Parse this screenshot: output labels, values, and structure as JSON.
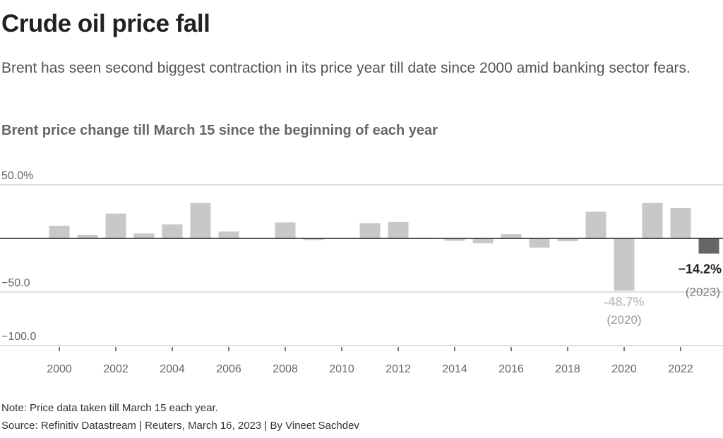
{
  "header": {
    "title": "Crude oil price fall",
    "subtitle": "Brent has seen second biggest contraction in its price year till date since 2000 amid banking sector fears."
  },
  "footer": {
    "note": "Note: Price data taken till March 15 each year.",
    "source": "Source: Refinitiv Datastream | Reuters, March 16, 2023 | By Vineet Sachdev"
  },
  "colors": {
    "bar": "#c8c8c8",
    "highlight_bar": "#666666",
    "zero_line": "#222222",
    "grid": "#cccccc",
    "annotation_2023": "#222222",
    "annotation_2020": "#c8c8c8",
    "annotation_year": "#777777"
  },
  "chart_data": {
    "type": "bar",
    "title": "Brent price change till March 15 since the beginning of each year",
    "xlabel": "",
    "ylabel": "",
    "ylim": [
      -100,
      50
    ],
    "grid": true,
    "y_ticks": [
      {
        "value": 50,
        "label": "50.0%"
      },
      {
        "value": -50,
        "label": "−50.0"
      },
      {
        "value": -100,
        "label": "−100.0"
      }
    ],
    "x_ticks": [
      "2000",
      "2002",
      "2004",
      "2006",
      "2008",
      "2010",
      "2012",
      "2014",
      "2016",
      "2018",
      "2020",
      "2022"
    ],
    "categories": [
      "2000",
      "2001",
      "2002",
      "2003",
      "2004",
      "2005",
      "2006",
      "2007",
      "2008",
      "2009",
      "2010",
      "2011",
      "2012",
      "2013",
      "2014",
      "2015",
      "2016",
      "2017",
      "2018",
      "2019",
      "2020",
      "2021",
      "2022",
      "2023"
    ],
    "values": [
      11.8,
      3.3,
      23.2,
      4.6,
      13.0,
      33.0,
      6.4,
      0,
      14.9,
      -1.5,
      0,
      14.2,
      15.3,
      -0.5,
      -2.2,
      -4.6,
      3.9,
      -8.6,
      -2.6,
      25.0,
      -48.7,
      33.0,
      28.3,
      -14.2
    ],
    "highlight": "2023",
    "annotations": [
      {
        "year": "2023",
        "value_label": "−14.2%",
        "year_label": "(2023)"
      },
      {
        "year": "2020",
        "value_label": "-48.7%",
        "year_label": "(2020)"
      }
    ]
  }
}
